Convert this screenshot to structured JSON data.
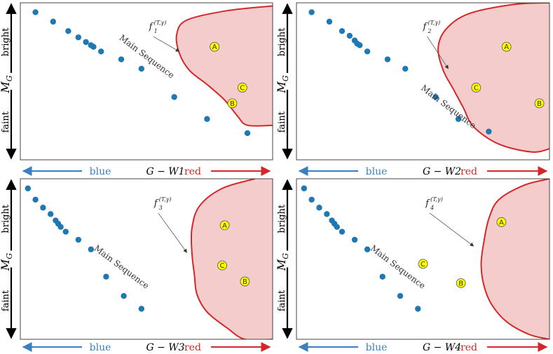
{
  "colors": {
    "point": "#1f77b4",
    "blue": "#3a7fc1",
    "red": "#d62728",
    "region_fill": "#f4cccc",
    "label_fill": "#ffff00"
  },
  "labels": {
    "bright": "bright",
    "faint": "faint",
    "mg": "M",
    "mg_sub": "G",
    "blue": "blue",
    "red": "red",
    "main_sequence": "Main Sequence",
    "f": "f",
    "f_sup": "(T,γ)"
  },
  "chart_data": [
    {
      "type": "scatter",
      "panel": "top-left",
      "xlabel": "G − W1",
      "f_index": "1",
      "main_sequence": [
        [
          0.06,
          0.06
        ],
        [
          0.13,
          0.12
        ],
        [
          0.19,
          0.18
        ],
        [
          0.23,
          0.22
        ],
        [
          0.26,
          0.25
        ],
        [
          0.28,
          0.27
        ],
        [
          0.29,
          0.28
        ],
        [
          0.32,
          0.31
        ],
        [
          0.4,
          0.36
        ],
        [
          0.48,
          0.42
        ],
        [
          0.61,
          0.6
        ],
        [
          0.74,
          0.74
        ],
        [
          0.9,
          0.83
        ]
      ],
      "region": [
        [
          1.0,
          0.02
        ],
        [
          0.82,
          0.05
        ],
        [
          0.66,
          0.11
        ],
        [
          0.62,
          0.2
        ],
        [
          0.63,
          0.32
        ],
        [
          0.67,
          0.43
        ],
        [
          0.74,
          0.52
        ],
        [
          0.81,
          0.62
        ],
        [
          0.86,
          0.72
        ],
        [
          0.9,
          0.78
        ],
        [
          1.0,
          0.78
        ]
      ],
      "points": [
        {
          "label": "A",
          "x": 0.77,
          "y": 0.28
        },
        {
          "label": "B",
          "x": 0.84,
          "y": 0.64
        },
        {
          "label": "C",
          "x": 0.88,
          "y": 0.54
        }
      ],
      "f_label": {
        "x": 0.51,
        "y": 0.17
      },
      "arrow_end": {
        "x": 0.63,
        "y": 0.31
      },
      "ms_label": {
        "x": 0.39,
        "y": 0.23
      }
    },
    {
      "type": "scatter",
      "panel": "top-right",
      "xlabel": "G − W2",
      "f_index": "2",
      "main_sequence": [
        [
          0.06,
          0.06
        ],
        [
          0.13,
          0.12
        ],
        [
          0.18,
          0.18
        ],
        [
          0.21,
          0.21
        ],
        [
          0.23,
          0.24
        ],
        [
          0.24,
          0.26
        ],
        [
          0.25,
          0.27
        ],
        [
          0.28,
          0.31
        ],
        [
          0.36,
          0.36
        ],
        [
          0.43,
          0.42
        ],
        [
          0.55,
          0.6
        ],
        [
          0.64,
          0.74
        ],
        [
          0.76,
          0.82
        ]
      ],
      "region": [
        [
          1.0,
          0.0
        ],
        [
          0.86,
          0.01
        ],
        [
          0.68,
          0.07
        ],
        [
          0.59,
          0.17
        ],
        [
          0.56,
          0.29
        ],
        [
          0.58,
          0.43
        ],
        [
          0.62,
          0.55
        ],
        [
          0.66,
          0.67
        ],
        [
          0.7,
          0.79
        ],
        [
          0.8,
          0.9
        ],
        [
          0.93,
          0.95
        ],
        [
          1.0,
          0.93
        ]
      ],
      "points": [
        {
          "label": "A",
          "x": 0.83,
          "y": 0.28
        },
        {
          "label": "B",
          "x": 0.96,
          "y": 0.64
        },
        {
          "label": "C",
          "x": 0.71,
          "y": 0.54
        }
      ],
      "f_label": {
        "x": 0.5,
        "y": 0.17
      },
      "arrow_end": {
        "x": 0.6,
        "y": 0.42
      },
      "ms_label": {
        "x": 0.49,
        "y": 0.55
      }
    },
    {
      "type": "scatter",
      "panel": "bottom-left",
      "xlabel": "G − W3",
      "f_index": "3",
      "main_sequence": [
        [
          0.03,
          0.06
        ],
        [
          0.06,
          0.13
        ],
        [
          0.09,
          0.18
        ],
        [
          0.12,
          0.22
        ],
        [
          0.14,
          0.26
        ],
        [
          0.15,
          0.28
        ],
        [
          0.16,
          0.3
        ],
        [
          0.18,
          0.33
        ],
        [
          0.23,
          0.38
        ],
        [
          0.28,
          0.44
        ],
        [
          0.34,
          0.61
        ],
        [
          0.41,
          0.73
        ],
        [
          0.48,
          0.81
        ]
      ],
      "region": [
        [
          0.93,
          0.0
        ],
        [
          0.8,
          0.06
        ],
        [
          0.71,
          0.17
        ],
        [
          0.68,
          0.31
        ],
        [
          0.68,
          0.46
        ],
        [
          0.69,
          0.6
        ],
        [
          0.7,
          0.72
        ],
        [
          0.74,
          0.83
        ],
        [
          0.82,
          0.93
        ],
        [
          0.89,
          1.0
        ],
        [
          1.0,
          1.0
        ]
      ],
      "points": [
        {
          "label": "A",
          "x": 0.81,
          "y": 0.29
        },
        {
          "label": "B",
          "x": 0.89,
          "y": 0.64
        },
        {
          "label": "C",
          "x": 0.8,
          "y": 0.54
        }
      ],
      "f_label": {
        "x": 0.53,
        "y": 0.17
      },
      "arrow_end": {
        "x": 0.66,
        "y": 0.46
      },
      "ms_label": {
        "x": 0.29,
        "y": 0.44
      }
    },
    {
      "type": "scatter",
      "panel": "bottom-right",
      "xlabel": "G − W4",
      "f_index": "4",
      "main_sequence": [
        [
          0.03,
          0.06
        ],
        [
          0.06,
          0.13
        ],
        [
          0.09,
          0.18
        ],
        [
          0.12,
          0.22
        ],
        [
          0.14,
          0.26
        ],
        [
          0.15,
          0.28
        ],
        [
          0.16,
          0.3
        ],
        [
          0.18,
          0.33
        ],
        [
          0.23,
          0.38
        ],
        [
          0.28,
          0.44
        ],
        [
          0.34,
          0.61
        ],
        [
          0.41,
          0.73
        ],
        [
          0.48,
          0.81
        ]
      ],
      "region": [
        [
          1.0,
          0.0
        ],
        [
          0.9,
          0.04
        ],
        [
          0.8,
          0.13
        ],
        [
          0.76,
          0.25
        ],
        [
          0.74,
          0.4
        ],
        [
          0.73,
          0.53
        ],
        [
          0.74,
          0.66
        ],
        [
          0.77,
          0.78
        ],
        [
          0.83,
          0.89
        ],
        [
          0.92,
          0.97
        ],
        [
          1.0,
          1.0
        ]
      ],
      "points": [
        {
          "label": "A",
          "x": 0.81,
          "y": 0.27
        },
        {
          "label": "B",
          "x": 0.65,
          "y": 0.65
        },
        {
          "label": "C",
          "x": 0.5,
          "y": 0.53
        }
      ],
      "f_label": {
        "x": 0.51,
        "y": 0.17
      },
      "arrow_end": {
        "x": 0.7,
        "y": 0.42
      },
      "ms_label": {
        "x": 0.29,
        "y": 0.44
      }
    }
  ]
}
